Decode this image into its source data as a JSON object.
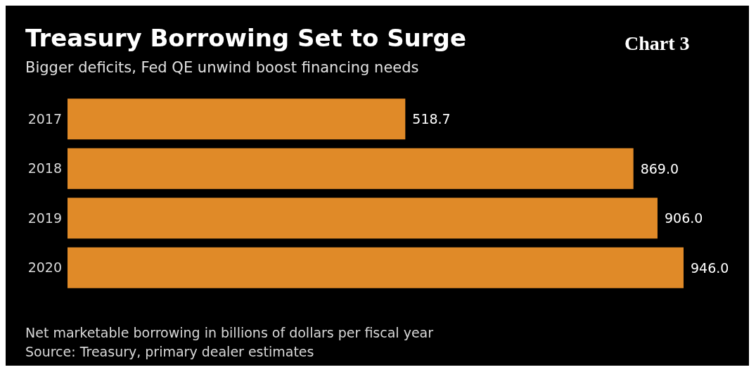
{
  "chart_data": {
    "type": "bar",
    "orientation": "horizontal",
    "title": "Treasury Borrowing Set to Surge",
    "subtitle": "Bigger deficits, Fed QE unwind boost financing needs",
    "categories": [
      "2017",
      "2018",
      "2019",
      "2020"
    ],
    "values": [
      518.7,
      869.0,
      906.0,
      946.0
    ],
    "value_labels": [
      "518.7",
      "869.0",
      "906.0",
      "946.0"
    ],
    "color": "#e08a28",
    "annotations": [
      "Chart 3",
      "Net marketable borrowing in billions of dollars per fiscal year",
      "Source: Treasury, primary dealer estimates"
    ]
  }
}
